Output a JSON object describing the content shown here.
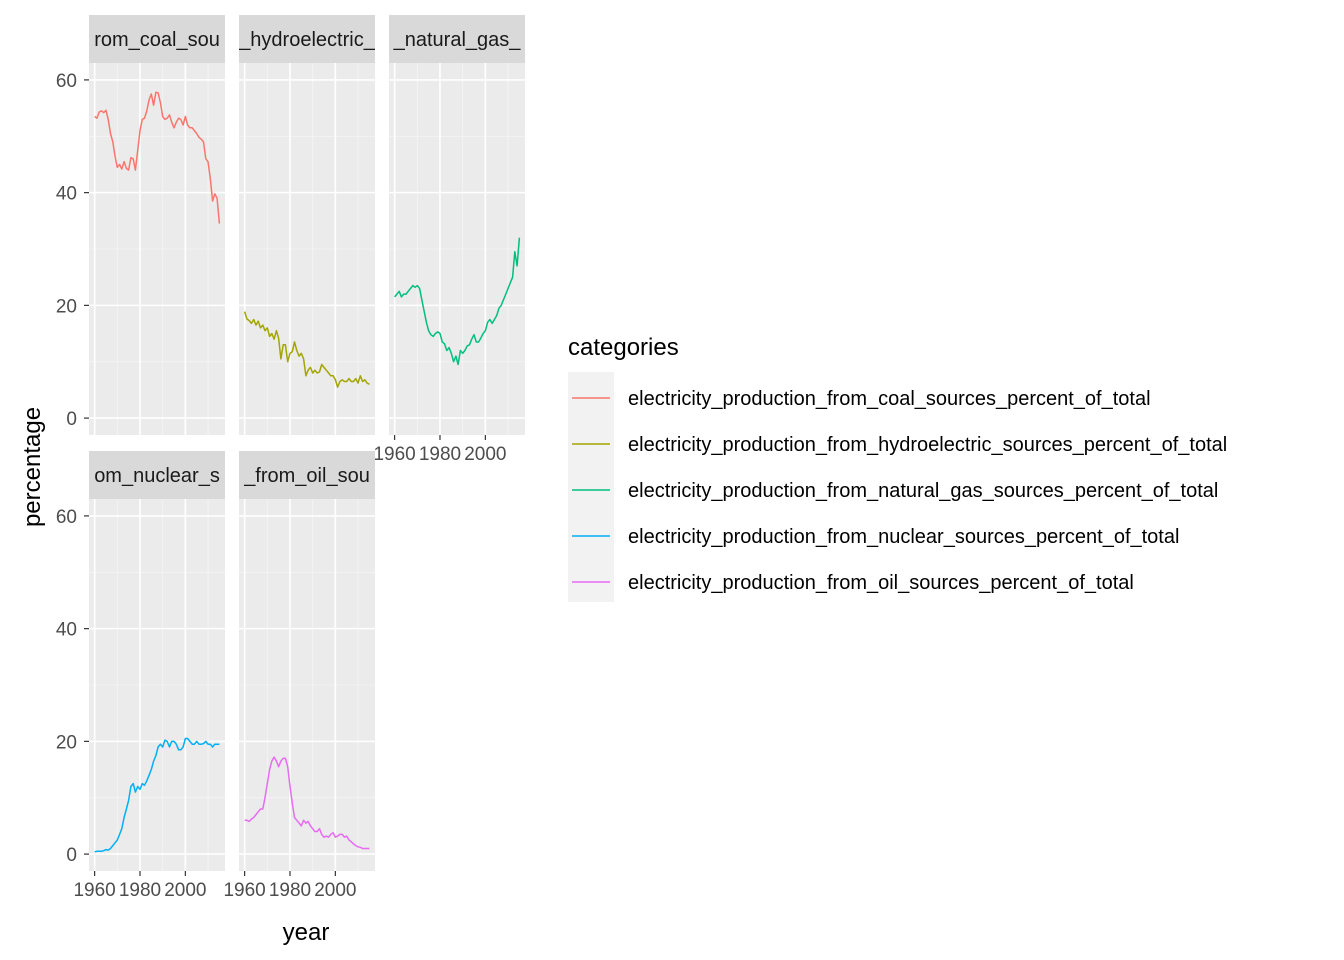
{
  "chart_data": {
    "type": "line",
    "facet_layout": "wrap",
    "xlabel": "year",
    "ylabel": "percentage",
    "xlim": [
      1960,
      2015
    ],
    "ylim": [
      0,
      60
    ],
    "x_ticks": [
      1960,
      1980,
      2000
    ],
    "x_tick_labels": [
      "1960",
      "1980",
      "2000"
    ],
    "y_ticks": [
      0,
      20,
      40,
      60
    ],
    "y_tick_labels": [
      "0",
      "20",
      "40",
      "60"
    ],
    "grid": true,
    "legend": {
      "title": "categories",
      "placement": "right"
    },
    "x": [
      1960,
      1961,
      1962,
      1963,
      1964,
      1965,
      1966,
      1967,
      1968,
      1969,
      1970,
      1971,
      1972,
      1973,
      1974,
      1975,
      1976,
      1977,
      1978,
      1979,
      1980,
      1981,
      1982,
      1983,
      1984,
      1985,
      1986,
      1987,
      1988,
      1989,
      1990,
      1991,
      1992,
      1993,
      1994,
      1995,
      1996,
      1997,
      1998,
      1999,
      2000,
      2001,
      2002,
      2003,
      2004,
      2005,
      2006,
      2007,
      2008,
      2009,
      2010,
      2011,
      2012,
      2013,
      2014,
      2015
    ],
    "series": [
      {
        "name": "electricity_production_from_coal_sources_percent_of_total",
        "strip": "rom_coal_sou",
        "color": "#F8766D",
        "values": [
          53.5,
          53.2,
          54.3,
          54.5,
          54.2,
          54.6,
          53.0,
          50.5,
          49.0,
          46.5,
          44.5,
          45.0,
          44.2,
          45.5,
          44.3,
          44.0,
          46.2,
          46.0,
          44.0,
          47.5,
          51.0,
          53.0,
          53.2,
          54.5,
          56.5,
          57.5,
          55.5,
          57.8,
          57.7,
          56.0,
          53.5,
          53.0,
          53.2,
          53.8,
          52.5,
          51.5,
          52.5,
          53.2,
          53.0,
          52.0,
          53.5,
          52.0,
          51.5,
          51.5,
          51.0,
          50.5,
          49.8,
          49.5,
          49.0,
          46.0,
          45.5,
          42.5,
          38.5,
          39.8,
          39.0,
          34.5
        ]
      },
      {
        "name": "electricity_production_from_hydroelectric_sources_percent_of_total",
        "strip": "_hydroelectric_",
        "color": "#A3A500",
        "values": [
          18.9,
          17.6,
          17.3,
          16.8,
          17.5,
          16.5,
          17.2,
          16.0,
          16.5,
          15.5,
          16.0,
          14.5,
          15.0,
          14.0,
          15.5,
          14.2,
          10.5,
          13.0,
          13.0,
          10.0,
          11.5,
          11.8,
          13.5,
          12.0,
          11.0,
          11.5,
          10.5,
          7.5,
          8.5,
          9.0,
          8.0,
          8.5,
          8.0,
          8.2,
          9.5,
          9.0,
          8.5,
          8.0,
          7.5,
          7.5,
          6.8,
          5.5,
          6.5,
          6.8,
          6.5,
          6.5,
          7.0,
          6.5,
          6.5,
          7.0,
          6.2,
          7.5,
          6.5,
          6.8,
          6.2,
          6.0
        ]
      },
      {
        "name": "electricity_production_from_natural_gas_sources_percent_of_total",
        "strip": "_natural_gas_",
        "color": "#00BF7D",
        "values": [
          21.5,
          22.0,
          22.5,
          21.5,
          22.0,
          22.0,
          22.5,
          23.0,
          23.5,
          23.2,
          23.5,
          23.0,
          21.0,
          19.0,
          17.0,
          15.5,
          14.8,
          14.5,
          15.0,
          15.3,
          15.0,
          13.5,
          13.2,
          12.0,
          12.5,
          11.5,
          10.0,
          11.0,
          9.5,
          12.0,
          11.5,
          12.0,
          12.8,
          13.0,
          14.0,
          14.8,
          13.5,
          13.5,
          14.2,
          15.0,
          15.5,
          17.0,
          17.5,
          16.8,
          17.5,
          18.2,
          19.5,
          20.0,
          21.0,
          22.0,
          23.0,
          24.0,
          25.0,
          29.5,
          27.0,
          32.0
        ]
      },
      {
        "name": "electricity_production_from_nuclear_sources_percent_of_total",
        "strip": "om_nuclear_s",
        "color": "#00B0F6",
        "values": [
          0.4,
          0.5,
          0.5,
          0.5,
          0.6,
          0.8,
          0.7,
          1.0,
          1.5,
          2.0,
          2.5,
          3.5,
          4.5,
          6.5,
          8.0,
          9.5,
          12.0,
          12.5,
          11.0,
          12.0,
          11.5,
          12.5,
          12.2,
          13.0,
          14.0,
          15.0,
          16.5,
          17.5,
          19.0,
          19.5,
          19.0,
          20.2,
          20.0,
          19.0,
          20.0,
          20.0,
          19.5,
          18.5,
          18.5,
          19.0,
          20.5,
          20.5,
          20.0,
          19.5,
          19.5,
          20.0,
          19.5,
          19.5,
          19.6,
          20.0,
          19.5,
          19.5,
          19.0,
          19.5,
          19.5,
          19.5
        ]
      },
      {
        "name": "electricity_production_from_oil_sources_percent_of_total",
        "strip": "_from_oil_sou",
        "color": "#E76BF3",
        "values": [
          6.0,
          6.0,
          5.8,
          6.2,
          6.5,
          7.0,
          7.5,
          8.0,
          8.0,
          10.0,
          12.5,
          15.0,
          16.5,
          17.2,
          16.5,
          15.5,
          16.5,
          17.0,
          17.0,
          15.5,
          12.0,
          9.0,
          6.5,
          6.0,
          5.5,
          5.0,
          6.0,
          5.5,
          5.8,
          5.0,
          4.5,
          4.0,
          4.0,
          4.5,
          3.5,
          3.0,
          3.2,
          3.0,
          3.5,
          3.8,
          3.0,
          3.2,
          3.5,
          3.5,
          3.0,
          3.2,
          2.5,
          2.2,
          1.8,
          1.5,
          1.3,
          1.2,
          1.0,
          1.0,
          1.0,
          1.0
        ]
      }
    ]
  }
}
